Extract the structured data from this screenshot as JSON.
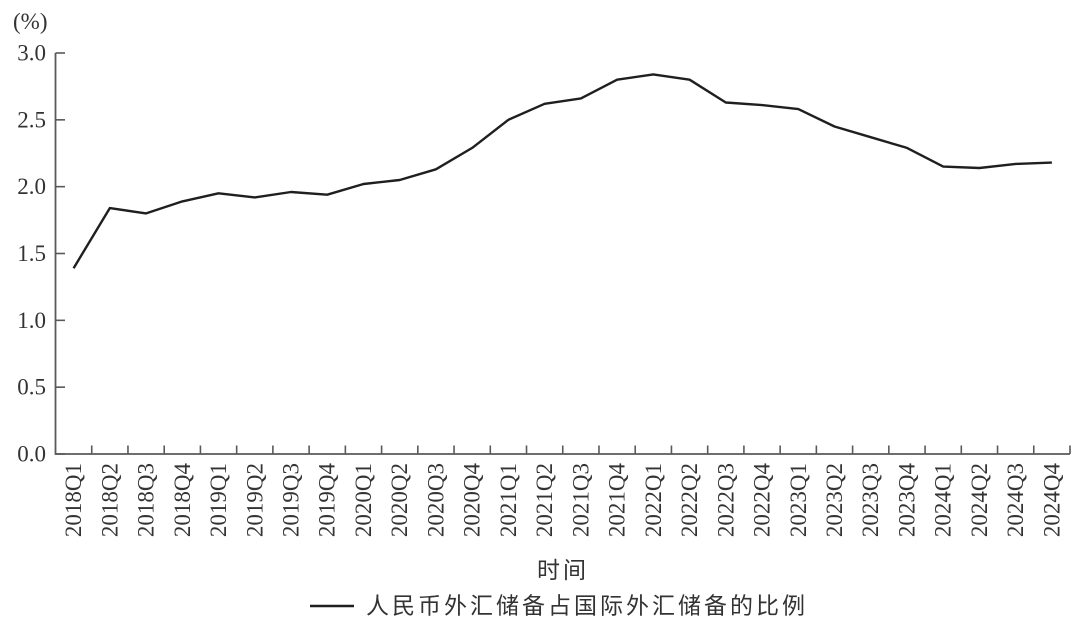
{
  "page": {
    "background": "#ffffff"
  },
  "chart_data": {
    "type": "line",
    "title": "",
    "unit_label": "(%)",
    "xlabel": "时间",
    "ylabel": "(%)",
    "categories": [
      "2018Q1",
      "2018Q2",
      "2018Q3",
      "2018Q4",
      "2019Q1",
      "2019Q2",
      "2019Q3",
      "2019Q4",
      "2020Q1",
      "2020Q2",
      "2020Q3",
      "2020Q4",
      "2021Q1",
      "2021Q2",
      "2021Q3",
      "2021Q4",
      "2022Q1",
      "2022Q2",
      "2022Q3",
      "2022Q4",
      "2023Q1",
      "2023Q2",
      "2023Q3",
      "2023Q4",
      "2024Q1",
      "2024Q2",
      "2024Q3",
      "2024Q4"
    ],
    "series": [
      {
        "name": "人民币外汇储备占国际外汇储备的比例",
        "color": "#1f1f1f",
        "values": [
          1.39,
          1.84,
          1.8,
          1.89,
          1.95,
          1.92,
          1.96,
          1.94,
          2.02,
          2.05,
          2.13,
          2.29,
          2.5,
          2.62,
          2.66,
          2.8,
          2.84,
          2.8,
          2.63,
          2.61,
          2.58,
          2.45,
          2.37,
          2.29,
          2.15,
          2.14,
          2.17,
          2.18
        ]
      }
    ],
    "ylim": [
      0.0,
      3.0
    ],
    "ytick_step": 0.5,
    "ytick_labels": [
      "0.0",
      "0.5",
      "1.0",
      "1.5",
      "2.0",
      "2.5",
      "3.0"
    ],
    "x_tick_rotation": 90,
    "grid": false,
    "legend_position": "bottom",
    "axis_color": "#595959",
    "text_color": "#333333"
  }
}
